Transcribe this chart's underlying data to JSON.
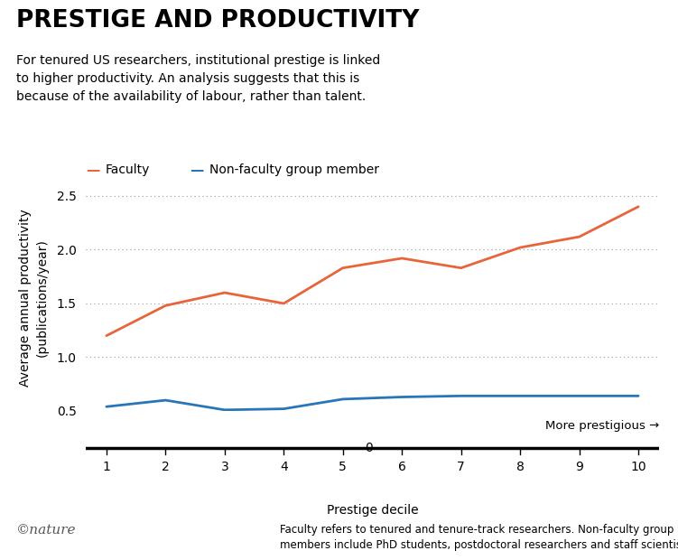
{
  "title": "PRESTIGE AND PRODUCTIVITY",
  "subtitle": "For tenured US researchers, institutional prestige is linked\nto higher productivity. An analysis suggests that this is\nbecause of the availability of labour, rather than talent.",
  "xlabel": "Prestige decile",
  "ylabel": "Average annual productivity\n(publications/year)",
  "footer": "Faculty refers to tenured and tenure-track researchers. Non-faculty group\nmembers include PhD students, postdoctoral researchers and staff scientists.",
  "nature_credit": "©nature",
  "x": [
    1,
    2,
    3,
    4,
    5,
    6,
    7,
    8,
    9,
    10
  ],
  "faculty_y": [
    1.2,
    1.48,
    1.6,
    1.5,
    1.83,
    1.92,
    1.83,
    2.02,
    2.12,
    2.4
  ],
  "nonfaculty_y": [
    0.54,
    0.6,
    0.51,
    0.52,
    0.61,
    0.63,
    0.64,
    0.64,
    0.64,
    0.64
  ],
  "faculty_color": "#E8643A",
  "nonfaculty_color": "#2876B8",
  "faculty_label": "Faculty",
  "nonfaculty_label": "Non-faculty group member",
  "ylim_main": [
    0.5,
    2.6
  ],
  "yticks_main": [
    0.5,
    1.0,
    1.5,
    2.0,
    2.5
  ],
  "xticks": [
    1,
    2,
    3,
    4,
    5,
    6,
    7,
    8,
    9,
    10
  ],
  "more_prestigious_label": "More prestigious →",
  "background_color": "#ffffff",
  "line_width": 2.0
}
